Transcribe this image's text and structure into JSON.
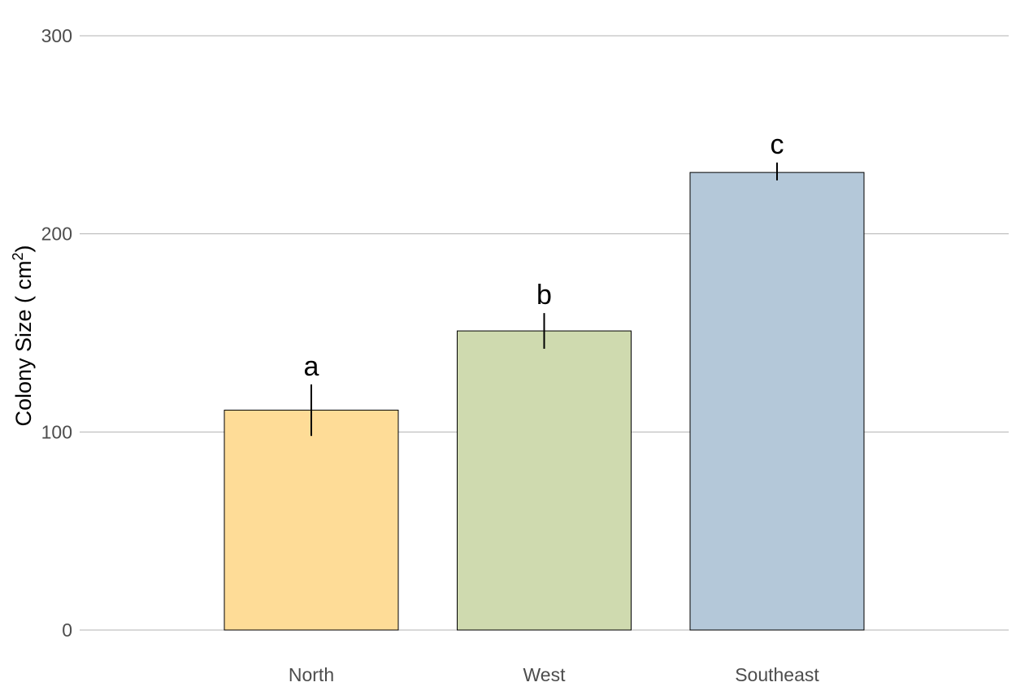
{
  "chart_data": {
    "type": "bar",
    "title": "",
    "xlabel": "",
    "ylabel": {
      "main": "Colony Size ( cm",
      "sup": "2",
      "close": ")"
    },
    "categories": [
      "North",
      "West",
      "Southeast"
    ],
    "values": [
      111,
      151,
      231
    ],
    "error": [
      [
        98,
        124
      ],
      [
        142,
        160
      ],
      [
        227,
        236
      ]
    ],
    "significance_labels": [
      "a",
      "b",
      "c"
    ],
    "bar_colors": [
      "#FEDC97",
      "#CFDAAF",
      "#B4C8D9"
    ],
    "ylim": [
      0,
      300
    ],
    "yticks": [
      0,
      100,
      200,
      300
    ],
    "grid": true,
    "legend": "none"
  }
}
